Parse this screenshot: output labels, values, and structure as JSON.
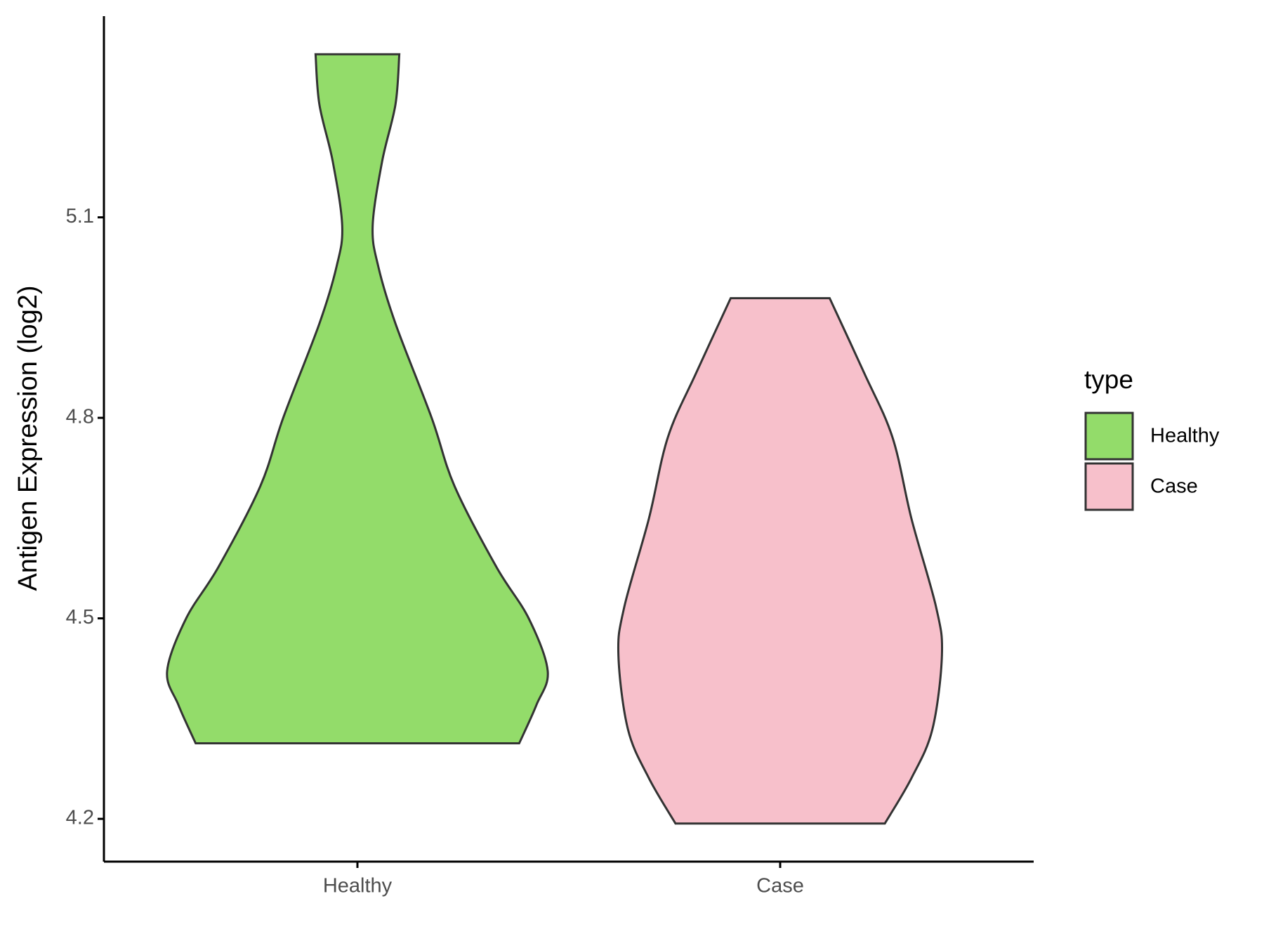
{
  "chart_data": {
    "type": "violin",
    "y_label": "Antigen Expression (log2)",
    "categories": [
      "Healthy",
      "Case"
    ],
    "series": [
      {
        "name": "Healthy",
        "color": "#93dc6a",
        "y": [
          4.313,
          4.37,
          4.421,
          4.5,
          4.577,
          4.698,
          4.8,
          4.941,
          5.026,
          5.087,
          5.184,
          5.269,
          5.344
        ],
        "density": [
          0.85,
          0.94,
          1.0,
          0.9,
          0.73,
          0.51,
          0.39,
          0.2,
          0.11,
          0.08,
          0.13,
          0.2,
          0.22
        ]
      },
      {
        "name": "Case",
        "color": "#f7c0cb",
        "y": [
          4.193,
          4.261,
          4.334,
          4.445,
          4.516,
          4.649,
          4.771,
          4.868,
          4.979
        ],
        "density": [
          0.55,
          0.69,
          0.8,
          0.85,
          0.82,
          0.69,
          0.59,
          0.44,
          0.26
        ]
      }
    ],
    "ylim": [
      4.136,
      5.401
    ],
    "yticks": [
      4.2,
      4.5,
      4.8,
      {
        "value": 5.1,
        "label": "5.1"
      }
    ],
    "legend_title": "type",
    "legend_position": "right",
    "outline_color": "#333333"
  }
}
